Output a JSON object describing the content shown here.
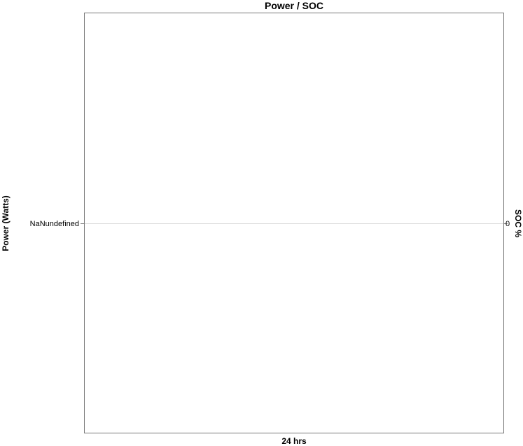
{
  "chart_data": {
    "type": "line",
    "title": "Power / SOC",
    "xlabel": "24 hrs",
    "ylabel": "Power (Watts)",
    "y2label": "SOC %",
    "y_ticks": [
      "NaNundefined"
    ],
    "y2_ticks": [
      "0"
    ],
    "grid": true,
    "series": [],
    "colors": {
      "frame": "#777777",
      "grid": "#d9d9d9",
      "text": "#000000"
    }
  }
}
